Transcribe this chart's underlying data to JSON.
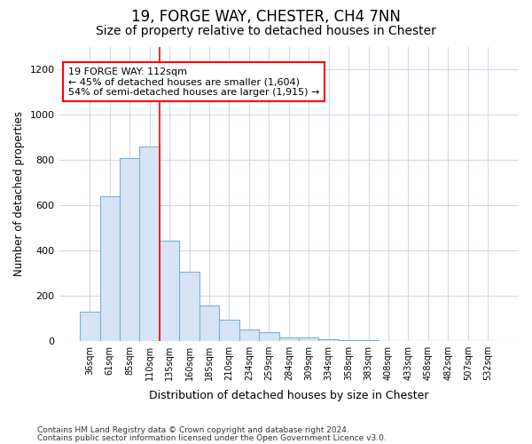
{
  "title1": "19, FORGE WAY, CHESTER, CH4 7NN",
  "title2": "Size of property relative to detached houses in Chester",
  "xlabel": "Distribution of detached houses by size in Chester",
  "ylabel": "Number of detached properties",
  "categories": [
    "36sqm",
    "61sqm",
    "85sqm",
    "110sqm",
    "135sqm",
    "160sqm",
    "185sqm",
    "210sqm",
    "234sqm",
    "259sqm",
    "284sqm",
    "309sqm",
    "334sqm",
    "358sqm",
    "383sqm",
    "408sqm",
    "433sqm",
    "458sqm",
    "482sqm",
    "507sqm",
    "532sqm"
  ],
  "values": [
    130,
    640,
    808,
    858,
    443,
    305,
    158,
    95,
    52,
    40,
    18,
    18,
    10,
    5,
    3,
    2,
    1,
    1,
    1,
    1,
    0
  ],
  "bar_facecolor": "#d6e4f5",
  "bar_edgecolor": "#7aafd4",
  "annotation_text": "19 FORGE WAY: 112sqm\n← 45% of detached houses are smaller (1,604)\n54% of semi-detached houses are larger (1,915) →",
  "footer1": "Contains HM Land Registry data © Crown copyright and database right 2024.",
  "footer2": "Contains public sector information licensed under the Open Government Licence v3.0.",
  "ylim": [
    0,
    1300
  ],
  "yticks": [
    0,
    200,
    400,
    600,
    800,
    1000,
    1200
  ],
  "bg_color": "#ffffff",
  "plot_bg_color": "#ffffff",
  "grid_color": "#d0d8e8",
  "title1_fontsize": 12,
  "title2_fontsize": 10,
  "redline_index": 3.5
}
